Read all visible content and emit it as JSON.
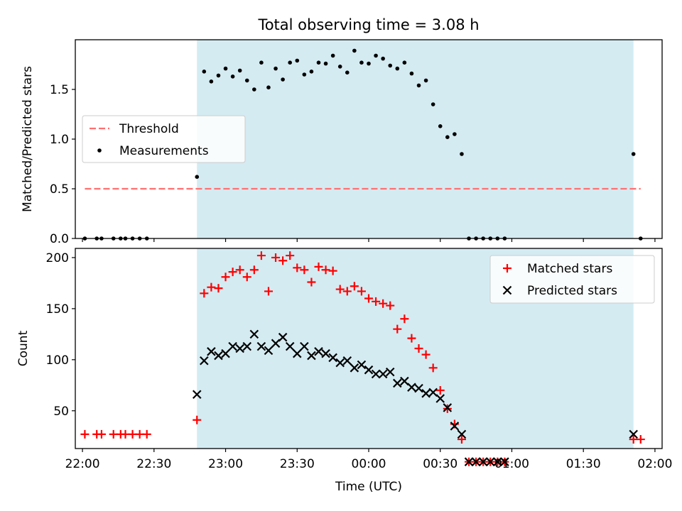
{
  "chart_data": [
    {
      "type": "scatter",
      "title": "Total observing time = 3.08 h",
      "xlabel": "",
      "ylabel": "Matched/Predicted stars",
      "xlim": [
        "21:57",
        "02:03"
      ],
      "ylim": [
        0,
        2.0
      ],
      "yticks": [
        "0.0",
        "0.5",
        "1.0",
        "1.5"
      ],
      "ytick_values": [
        0,
        0.5,
        1.0,
        1.5
      ],
      "xticks": [
        "22:00",
        "22:30",
        "23:00",
        "23:30",
        "00:00",
        "00:30",
        "01:00",
        "01:30",
        "02:00"
      ],
      "xtick_labels_shown": false,
      "shaded_region": {
        "from": "22:48",
        "to": "01:51",
        "color": "#add8e6"
      },
      "grid": false,
      "legend_position": "center-left",
      "legend": [
        {
          "label": "Threshold",
          "style": "dashed-line",
          "color": "#ff7070"
        },
        {
          "label": "Measurements",
          "style": "dot",
          "color": "#000000"
        }
      ],
      "threshold": {
        "value": 0.5,
        "from": "22:01",
        "to": "01:54"
      },
      "series": [
        {
          "name": "Measurements",
          "color": "#000000",
          "x": [
            "22:01",
            "22:06",
            "22:08",
            "22:13",
            "22:16",
            "22:18",
            "22:21",
            "22:24",
            "22:27",
            "22:48",
            "22:51",
            "22:54",
            "22:57",
            "23:00",
            "23:03",
            "23:06",
            "23:09",
            "23:12",
            "23:15",
            "23:18",
            "23:21",
            "23:24",
            "23:27",
            "23:30",
            "23:33",
            "23:36",
            "23:39",
            "23:42",
            "23:45",
            "23:48",
            "23:51",
            "23:54",
            "23:57",
            "00:00",
            "00:03",
            "00:06",
            "00:09",
            "00:12",
            "00:15",
            "00:18",
            "00:21",
            "00:24",
            "00:27",
            "00:30",
            "00:33",
            "00:36",
            "00:39",
            "00:42",
            "00:45",
            "00:48",
            "00:51",
            "00:54",
            "00:57",
            "01:51",
            "01:54"
          ],
          "y": [
            0,
            0,
            0,
            0,
            0,
            0,
            0,
            0,
            0,
            0.62,
            1.68,
            1.58,
            1.64,
            1.71,
            1.63,
            1.69,
            1.59,
            1.5,
            1.77,
            1.52,
            1.71,
            1.6,
            1.77,
            1.79,
            1.65,
            1.68,
            1.77,
            1.76,
            1.84,
            1.73,
            1.67,
            1.89,
            1.77,
            1.76,
            1.84,
            1.81,
            1.74,
            1.71,
            1.77,
            1.66,
            1.54,
            1.59,
            1.35,
            1.13,
            1.02,
            1.05,
            0.85,
            0,
            0,
            0,
            0,
            0,
            0,
            0.85,
            0
          ]
        }
      ]
    },
    {
      "type": "scatter",
      "title": "",
      "xlabel": "Time (UTC)",
      "ylabel": "Count",
      "xlim": [
        "21:57",
        "02:03"
      ],
      "ylim": [
        13,
        209
      ],
      "yticks": [
        "50",
        "100",
        "150",
        "200"
      ],
      "ytick_values": [
        50,
        100,
        150,
        200
      ],
      "xticks": [
        "22:00",
        "22:30",
        "23:00",
        "23:30",
        "00:00",
        "00:30",
        "01:00",
        "01:30",
        "02:00"
      ],
      "xtick_labels_shown": true,
      "shaded_region": {
        "from": "22:48",
        "to": "01:51",
        "color": "#add8e6"
      },
      "grid": false,
      "legend_position": "top-right",
      "legend": [
        {
          "label": "Matched stars",
          "style": "plus",
          "color": "#ff0000"
        },
        {
          "label": "Predicted stars",
          "style": "cross",
          "color": "#000000"
        }
      ],
      "series": [
        {
          "name": "Matched stars",
          "color": "#ff0000",
          "marker": "plus",
          "x": [
            "22:01",
            "22:06",
            "22:08",
            "22:13",
            "22:16",
            "22:18",
            "22:21",
            "22:24",
            "22:27",
            "22:48",
            "22:51",
            "22:54",
            "22:57",
            "23:00",
            "23:03",
            "23:06",
            "23:09",
            "23:12",
            "23:15",
            "23:18",
            "23:21",
            "23:24",
            "23:27",
            "23:30",
            "23:33",
            "23:36",
            "23:39",
            "23:42",
            "23:45",
            "23:48",
            "23:51",
            "23:54",
            "23:57",
            "00:00",
            "00:03",
            "00:06",
            "00:09",
            "00:12",
            "00:15",
            "00:18",
            "00:21",
            "00:24",
            "00:27",
            "00:30",
            "00:33",
            "00:36",
            "00:39",
            "00:42",
            "00:45",
            "00:48",
            "00:51",
            "00:54",
            "00:57",
            "01:51",
            "01:54"
          ],
          "y": [
            27,
            27,
            27,
            27,
            27,
            27,
            27,
            27,
            27,
            41,
            165,
            171,
            170,
            181,
            186,
            188,
            181,
            188,
            202,
            167,
            200,
            197,
            202,
            190,
            188,
            176,
            191,
            188,
            187,
            169,
            167,
            172,
            167,
            160,
            157,
            155,
            153,
            130,
            140,
            121,
            111,
            105,
            92,
            70,
            52,
            37,
            22,
            0,
            0,
            0,
            0,
            0,
            0,
            22,
            22
          ]
        },
        {
          "name": "Predicted stars",
          "color": "#000000",
          "marker": "cross",
          "x": [
            "22:48",
            "22:51",
            "22:54",
            "22:57",
            "23:00",
            "23:03",
            "23:06",
            "23:09",
            "23:12",
            "23:15",
            "23:18",
            "23:21",
            "23:24",
            "23:27",
            "23:30",
            "23:33",
            "23:36",
            "23:39",
            "23:42",
            "23:45",
            "23:48",
            "23:51",
            "23:54",
            "23:57",
            "00:00",
            "00:03",
            "00:06",
            "00:09",
            "00:12",
            "00:15",
            "00:18",
            "00:21",
            "00:24",
            "00:27",
            "00:30",
            "00:33",
            "00:36",
            "00:39",
            "00:42",
            "00:45",
            "00:48",
            "00:51",
            "00:54",
            "00:57",
            "01:51"
          ],
          "y": [
            66,
            99,
            108,
            104,
            106,
            113,
            111,
            113,
            125,
            113,
            109,
            116,
            122,
            113,
            106,
            113,
            104,
            108,
            106,
            102,
            97,
            99,
            92,
            95,
            90,
            86,
            86,
            88,
            77,
            79,
            73,
            72,
            67,
            68,
            62,
            53,
            35,
            27,
            0,
            0,
            0,
            0,
            0,
            0,
            27
          ]
        }
      ]
    }
  ]
}
